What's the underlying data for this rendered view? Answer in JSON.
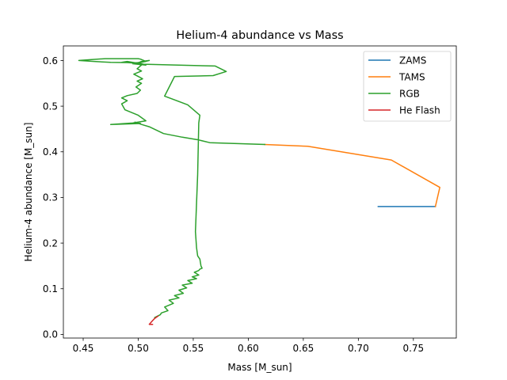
{
  "chart_data": {
    "type": "line",
    "title": "Helium-4 abundance vs Mass",
    "xlabel": "Mass [M_sun]",
    "ylabel": "Helium-4 abundance [M_sun]",
    "xlim": [
      0.432,
      0.789
    ],
    "ylim": [
      -0.008,
      0.632
    ],
    "xticks": [
      0.45,
      0.5,
      0.55,
      0.6,
      0.65,
      0.7,
      0.75
    ],
    "xtick_labels": [
      "0.45",
      "0.50",
      "0.55",
      "0.60",
      "0.65",
      "0.70",
      "0.75"
    ],
    "yticks": [
      0.0,
      0.1,
      0.2,
      0.3,
      0.4,
      0.5,
      0.6
    ],
    "ytick_labels": [
      "0.0",
      "0.1",
      "0.2",
      "0.3",
      "0.4",
      "0.5",
      "0.6"
    ],
    "grid": false,
    "legend_position": "top-right",
    "series": [
      {
        "name": "ZAMS",
        "color": "#1f77b4",
        "x": [
          0.718,
          0.74,
          0.77
        ],
        "y": [
          0.28,
          0.28,
          0.28
        ]
      },
      {
        "name": "TAMS",
        "color": "#ff7f0e",
        "x": [
          0.77,
          0.774,
          0.73,
          0.654,
          0.615
        ],
        "y": [
          0.28,
          0.322,
          0.382,
          0.412,
          0.416
        ]
      },
      {
        "name": "RGB",
        "color": "#2ca02c",
        "x": [
          0.615,
          0.565,
          0.555,
          0.54,
          0.523,
          0.51,
          0.503,
          0.497,
          0.502,
          0.475,
          0.495,
          0.507,
          0.5,
          0.488,
          0.485,
          0.49,
          0.485,
          0.49,
          0.499,
          0.502,
          0.498,
          0.503,
          0.499,
          0.504,
          0.5,
          0.496,
          0.503,
          0.499,
          0.503,
          0.496,
          0.507,
          0.502,
          0.5,
          0.47,
          0.446,
          0.46,
          0.475,
          0.5,
          0.503,
          0.51,
          0.503,
          0.495,
          0.507,
          0.5,
          0.485,
          0.49,
          0.505,
          0.57,
          0.58,
          0.568,
          0.533,
          0.524,
          0.545,
          0.556,
          0.555,
          0.554,
          0.552,
          0.553,
          0.554,
          0.556,
          0.557,
          0.558,
          0.556,
          0.555,
          0.551,
          0.555,
          0.549,
          0.553,
          0.545,
          0.549,
          0.54,
          0.544,
          0.537,
          0.541,
          0.533,
          0.537,
          0.528,
          0.532,
          0.524,
          0.527,
          0.521,
          0.52,
          0.515
        ],
        "y": [
          0.416,
          0.42,
          0.426,
          0.432,
          0.44,
          0.455,
          0.46,
          0.465,
          0.462,
          0.46,
          0.463,
          0.468,
          0.48,
          0.492,
          0.505,
          0.512,
          0.518,
          0.523,
          0.528,
          0.535,
          0.542,
          0.55,
          0.555,
          0.56,
          0.565,
          0.57,
          0.577,
          0.582,
          0.59,
          0.594,
          0.598,
          0.603,
          0.604,
          0.604,
          0.6,
          0.598,
          0.596,
          0.595,
          0.598,
          0.6,
          0.596,
          0.593,
          0.59,
          0.594,
          0.596,
          0.598,
          0.592,
          0.588,
          0.576,
          0.567,
          0.565,
          0.522,
          0.503,
          0.48,
          0.463,
          0.35,
          0.225,
          0.19,
          0.172,
          0.165,
          0.15,
          0.145,
          0.143,
          0.14,
          0.136,
          0.13,
          0.126,
          0.122,
          0.118,
          0.112,
          0.108,
          0.102,
          0.097,
          0.09,
          0.085,
          0.08,
          0.075,
          0.068,
          0.06,
          0.052,
          0.047,
          0.043,
          0.037
        ]
      },
      {
        "name": "He Flash",
        "color": "#d62728",
        "x": [
          0.518,
          0.515,
          0.513,
          0.51,
          0.513
        ],
        "y": [
          0.04,
          0.035,
          0.03,
          0.022,
          0.022
        ]
      }
    ]
  }
}
